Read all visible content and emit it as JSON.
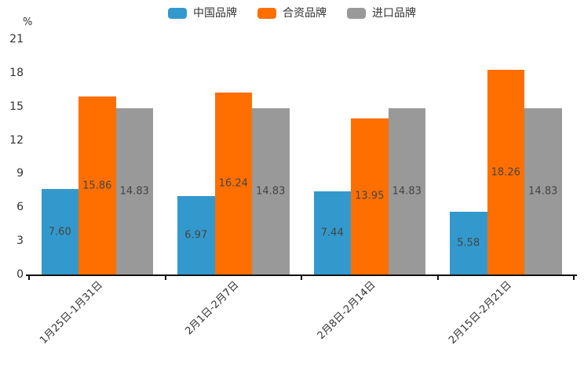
{
  "chart_data": {
    "type": "bar",
    "title": "",
    "unit_label": "%",
    "categories": [
      "1月25日-1月31日",
      "2月1日-2月7日",
      "2月8日-2月14日",
      "2月15日-2月21日"
    ],
    "series": [
      {
        "name": "中国品牌",
        "color": "#3399cc",
        "values": [
          7.6,
          6.97,
          7.44,
          5.58
        ],
        "labels": [
          "7.60",
          "6.97",
          "7.44",
          "5.58"
        ]
      },
      {
        "name": "合资品牌",
        "color": "#ff6f00",
        "values": [
          15.86,
          16.24,
          13.95,
          18.26
        ],
        "labels": [
          "15.86",
          "16.24",
          "13.95",
          "18.26"
        ]
      },
      {
        "name": "进口品牌",
        "color": "#999999",
        "values": [
          14.83,
          14.83,
          14.83,
          14.83
        ],
        "labels": [
          "14.83",
          "14.83",
          "14.83",
          "14.83"
        ]
      }
    ],
    "xlabel": "",
    "ylabel": "%",
    "ylim": [
      0,
      21
    ],
    "y_ticks": [
      0,
      3,
      6,
      9,
      12,
      15,
      18,
      21
    ],
    "grid": false,
    "legend_position": "top-center",
    "value_label_position": "inside-center",
    "x_label_rotation_deg": 45,
    "axis_color": "#111111",
    "text_color": "#333333",
    "value_label_color": "#444444",
    "background_color": "#ffffff"
  }
}
